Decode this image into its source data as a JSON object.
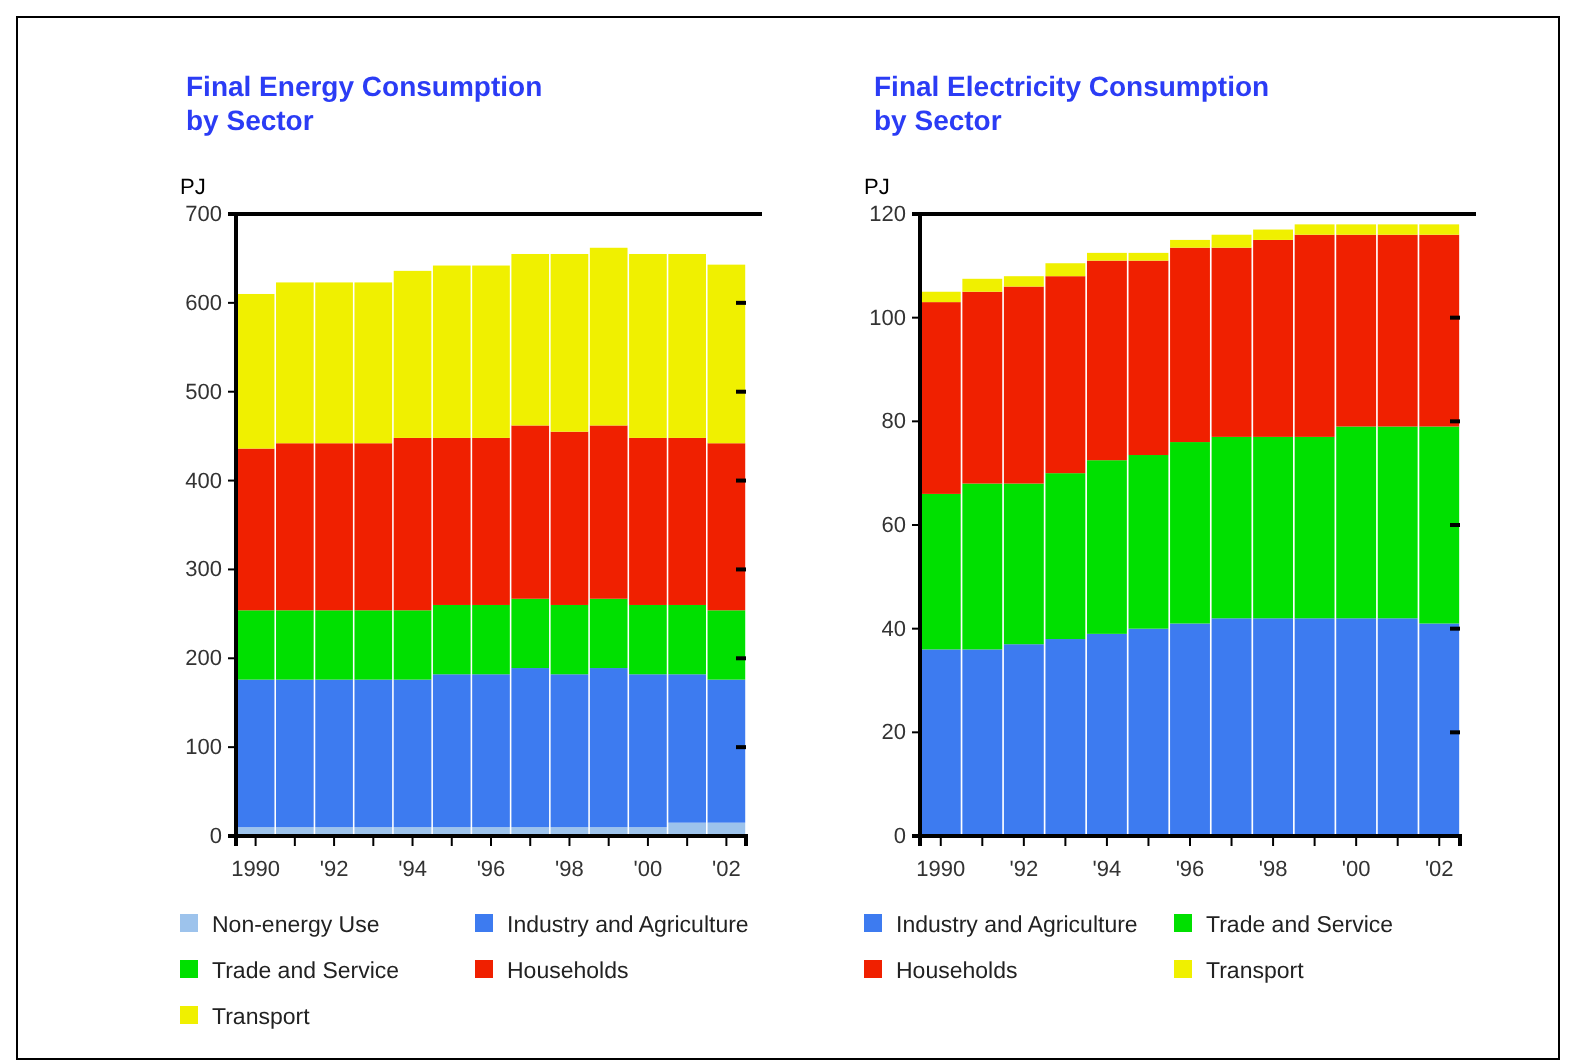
{
  "chart_data": [
    {
      "type": "bar",
      "stacked": true,
      "title": "Final Energy Consumption\nby Sector",
      "ylabel": "PJ",
      "categories": [
        "1990",
        null,
        "'92",
        null,
        "'94",
        null,
        "'96",
        null,
        "'98",
        null,
        "'00",
        null,
        "'02"
      ],
      "ylim": [
        0,
        700
      ],
      "yticks": [
        0,
        100,
        200,
        300,
        400,
        500,
        600,
        700
      ],
      "legend": "bottom",
      "series": [
        {
          "name": "Non-energy Use",
          "color": "#9dc3ec",
          "values": [
            10,
            10,
            10,
            10,
            10,
            10,
            10,
            10,
            10,
            10,
            10,
            15,
            15
          ]
        },
        {
          "name": "Industry and Agriculture",
          "color": "#3d7bf0",
          "values": [
            166,
            166,
            166,
            166,
            166,
            172,
            172,
            179,
            172,
            179,
            172,
            167,
            161
          ]
        },
        {
          "name": "Trade and Service",
          "color": "#00e000",
          "values": [
            78,
            78,
            78,
            78,
            78,
            78,
            78,
            78,
            78,
            78,
            78,
            78,
            78
          ]
        },
        {
          "name": "Households",
          "color": "#f02000",
          "values": [
            182,
            188,
            188,
            188,
            194,
            188,
            188,
            195,
            195,
            195,
            188,
            188,
            188
          ]
        },
        {
          "name": "Transport",
          "color": "#f0f000",
          "values": [
            174,
            181,
            181,
            181,
            188,
            194,
            194,
            193,
            200,
            200,
            207,
            207,
            201
          ]
        }
      ]
    },
    {
      "type": "bar",
      "stacked": true,
      "title": "Final Electricity Consumption\nby Sector",
      "ylabel": "PJ",
      "categories": [
        "1990",
        null,
        "'92",
        null,
        "'94",
        null,
        "'96",
        null,
        "'98",
        null,
        "'00",
        null,
        "'02"
      ],
      "ylim": [
        0,
        120
      ],
      "yticks": [
        0,
        20,
        40,
        60,
        80,
        100,
        120
      ],
      "legend": "bottom",
      "series": [
        {
          "name": "Industry and Agriculture",
          "color": "#3d7bf0",
          "values": [
            36,
            36,
            37,
            38,
            39,
            40,
            41,
            42,
            42,
            42,
            42,
            42,
            41
          ]
        },
        {
          "name": "Trade and Service",
          "color": "#00e000",
          "values": [
            30,
            32,
            31,
            32,
            33.5,
            33.5,
            35,
            35,
            35,
            35,
            37,
            37,
            38
          ]
        },
        {
          "name": "Households",
          "color": "#f02000",
          "values": [
            37,
            37,
            38,
            38,
            38.5,
            37.5,
            37.5,
            36.5,
            38,
            39,
            37,
            37,
            37
          ]
        },
        {
          "name": "Transport",
          "color": "#f0f000",
          "values": [
            2,
            2.5,
            2,
            2.5,
            1.5,
            1.5,
            1.5,
            2.5,
            2,
            2,
            2,
            2,
            2
          ]
        }
      ]
    }
  ]
}
